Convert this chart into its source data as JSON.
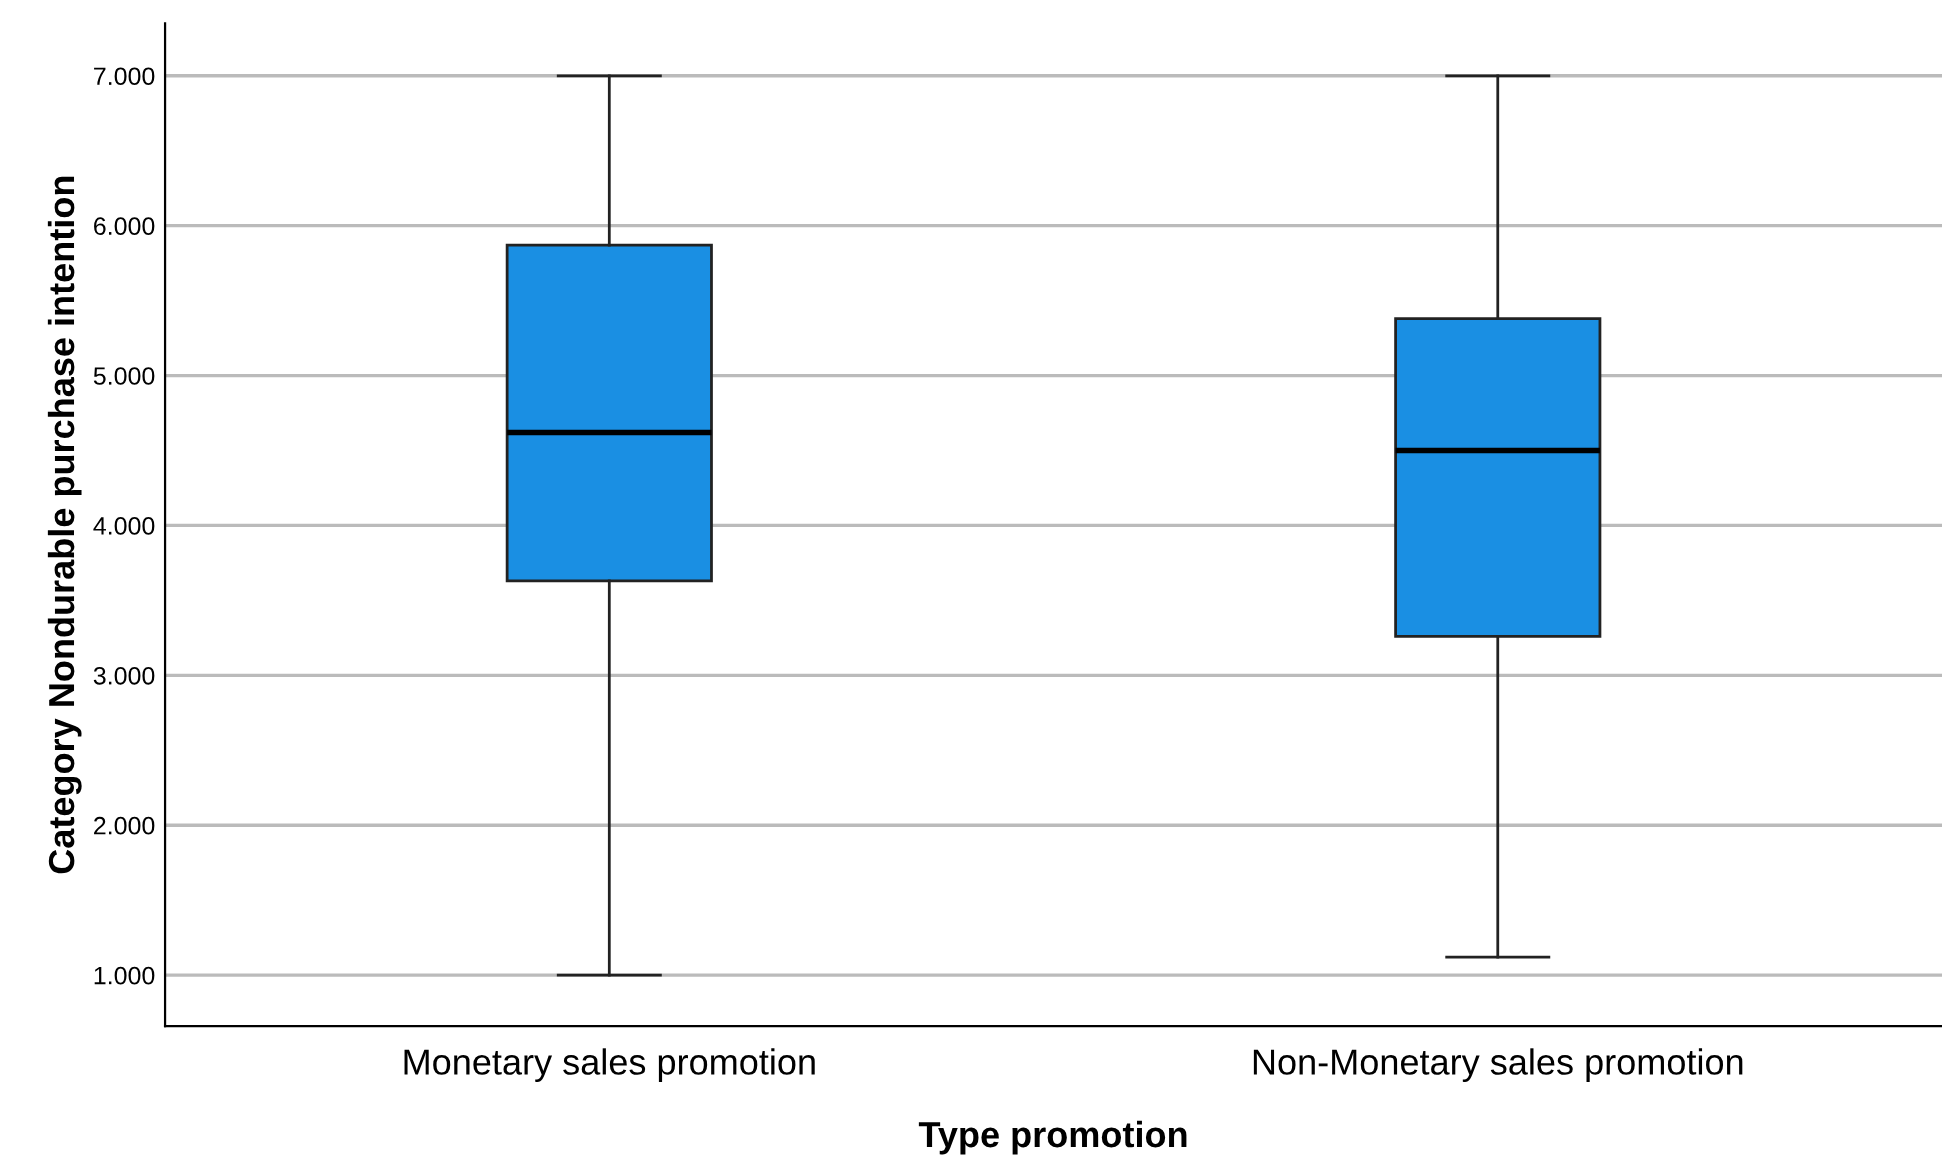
{
  "chart_data": {
    "type": "box",
    "xlabel": "Type promotion",
    "ylabel": "Category Nondurable purchase intention",
    "categories": [
      "Monetary sales promotion",
      "Non-Monetary sales promotion"
    ],
    "boxes": [
      {
        "low": 1,
        "q1": 3.63,
        "median": 4.62,
        "q3": 5.87,
        "high": 7
      },
      {
        "low": 1.12,
        "q1": 3.26,
        "median": 4.5,
        "q3": 5.38,
        "high": 7
      }
    ],
    "color": "#1a8fe3",
    "ylim": [
      0.66,
      7.35
    ],
    "yticks": [
      {
        "value": 1,
        "label": "1.000"
      },
      {
        "value": 2,
        "label": "2.000"
      },
      {
        "value": 3,
        "label": "3.000"
      },
      {
        "value": 4,
        "label": "4.000"
      },
      {
        "value": 5,
        "label": "5.000"
      },
      {
        "value": 6,
        "label": "6.000"
      },
      {
        "value": 7,
        "label": "7.000"
      }
    ],
    "grid": "y"
  }
}
